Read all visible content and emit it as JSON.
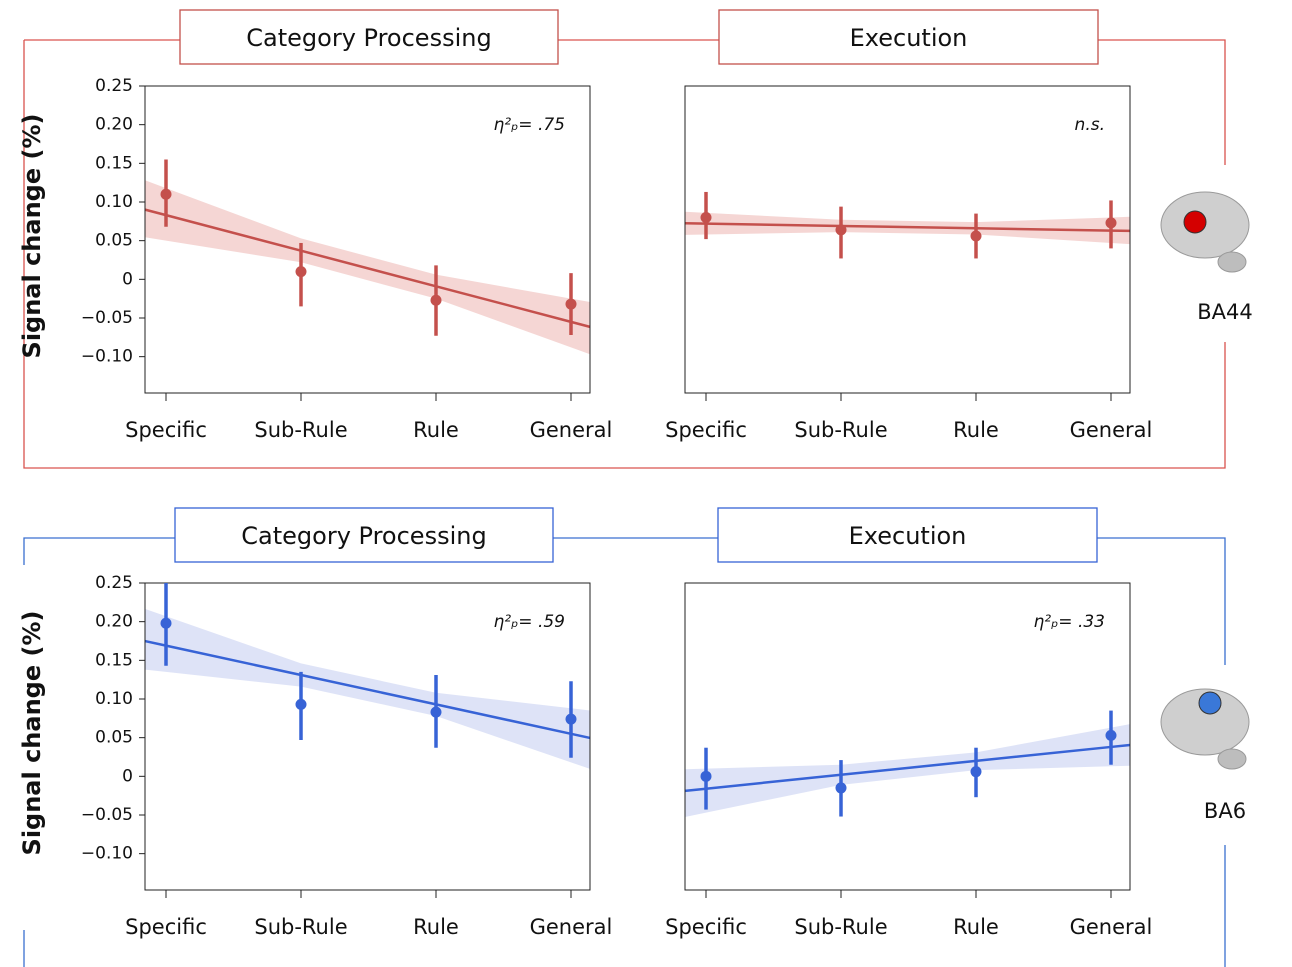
{
  "chart_data": [
    {
      "type": "pointplot",
      "title": "Category Processing",
      "ylabel": "Signal change (%)",
      "annotation": "η²ₚ= .75",
      "categories": [
        "Specific",
        "Sub-Rule",
        "Rule",
        "General"
      ],
      "values": [
        0.11,
        0.01,
        -0.027,
        -0.032
      ],
      "error_upper": [
        0.155,
        0.047,
        0.018,
        0.008
      ],
      "error_lower": [
        0.068,
        -0.035,
        -0.073,
        -0.072
      ],
      "fit": [
        0.083,
        0.037,
        -0.009,
        -0.055
      ],
      "fit_upper": [
        0.118,
        0.053,
        0.006,
        -0.025
      ],
      "fit_lower": [
        0.05,
        0.022,
        -0.025,
        -0.088
      ],
      "color": "#c4504c",
      "band_color": "#f3cfcd",
      "ylim": [
        -0.147,
        0.25
      ],
      "yticks": [
        {
          "value": 0.25,
          "label": "0.25"
        },
        {
          "value": 0.2,
          "label": "0.20"
        },
        {
          "value": 0.15,
          "label": "0.15"
        },
        {
          "value": 0.1,
          "label": "0.10"
        },
        {
          "value": 0.05,
          "label": "0.05"
        },
        0,
        {
          "value": -0.05,
          "label": "−0.05"
        },
        {
          "value": -0.1,
          "label": "−0.10"
        }
      ]
    },
    {
      "type": "pointplot",
      "title": "Execution",
      "annotation": "n.s.",
      "categories": [
        "Specific",
        "Sub-Rule",
        "Rule",
        "General"
      ],
      "values": [
        0.08,
        0.064,
        0.056,
        0.073
      ],
      "error_upper": [
        0.113,
        0.094,
        0.085,
        0.102
      ],
      "error_lower": [
        0.052,
        0.027,
        0.027,
        0.04
      ],
      "fit": [
        0.072,
        0.069,
        0.066,
        0.063
      ],
      "fit_upper": [
        0.086,
        0.077,
        0.074,
        0.08
      ],
      "fit_lower": [
        0.058,
        0.061,
        0.058,
        0.047
      ],
      "color": "#c4504c",
      "band_color": "#f3cfcd",
      "ylim": [
        -0.147,
        0.25
      ]
    },
    {
      "type": "pointplot",
      "title": "Category Processing",
      "ylabel": "Signal change (%)",
      "annotation": "η²ₚ= .59",
      "categories": [
        "Specific",
        "Sub-Rule",
        "Rule",
        "General"
      ],
      "values": [
        0.198,
        0.093,
        0.083,
        0.074
      ],
      "error_upper": [
        0.25,
        0.135,
        0.131,
        0.123
      ],
      "error_lower": [
        0.143,
        0.047,
        0.037,
        0.024
      ],
      "fit": [
        0.169,
        0.131,
        0.093,
        0.055
      ],
      "fit_upper": [
        0.207,
        0.146,
        0.108,
        0.088
      ],
      "fit_lower": [
        0.135,
        0.116,
        0.078,
        0.018
      ],
      "color": "#3763d6",
      "band_color": "#d8def6",
      "ylim": [
        -0.147,
        0.25
      ],
      "yticks": [
        {
          "value": 0.25,
          "label": "0.25"
        },
        {
          "value": 0.2,
          "label": "0.20"
        },
        {
          "value": 0.15,
          "label": "0.15"
        },
        {
          "value": 0.1,
          "label": "0.10"
        },
        {
          "value": 0.05,
          "label": "0.05"
        },
        0,
        {
          "value": -0.05,
          "label": "−0.05"
        },
        {
          "value": -0.1,
          "label": "−0.10"
        }
      ]
    },
    {
      "type": "pointplot",
      "title": "Execution",
      "annotation": "η²ₚ= .33",
      "categories": [
        "Specific",
        "Sub-Rule",
        "Rule",
        "General"
      ],
      "values": [
        0.0,
        -0.015,
        0.006,
        0.053
      ],
      "error_upper": [
        0.037,
        0.021,
        0.037,
        0.085
      ],
      "error_lower": [
        -0.043,
        -0.052,
        -0.027,
        0.015
      ],
      "fit": [
        -0.016,
        0.002,
        0.02,
        0.038
      ],
      "fit_upper": [
        0.01,
        0.015,
        0.031,
        0.063
      ],
      "fit_lower": [
        -0.047,
        -0.011,
        0.008,
        0.013
      ],
      "color": "#3763d6",
      "band_color": "#d8def6",
      "ylim": [
        -0.147,
        0.25
      ]
    }
  ],
  "regions": [
    {
      "label": "BA44",
      "color": "#d40000"
    },
    {
      "label": "BA6",
      "color": "#3a78d8"
    }
  ]
}
